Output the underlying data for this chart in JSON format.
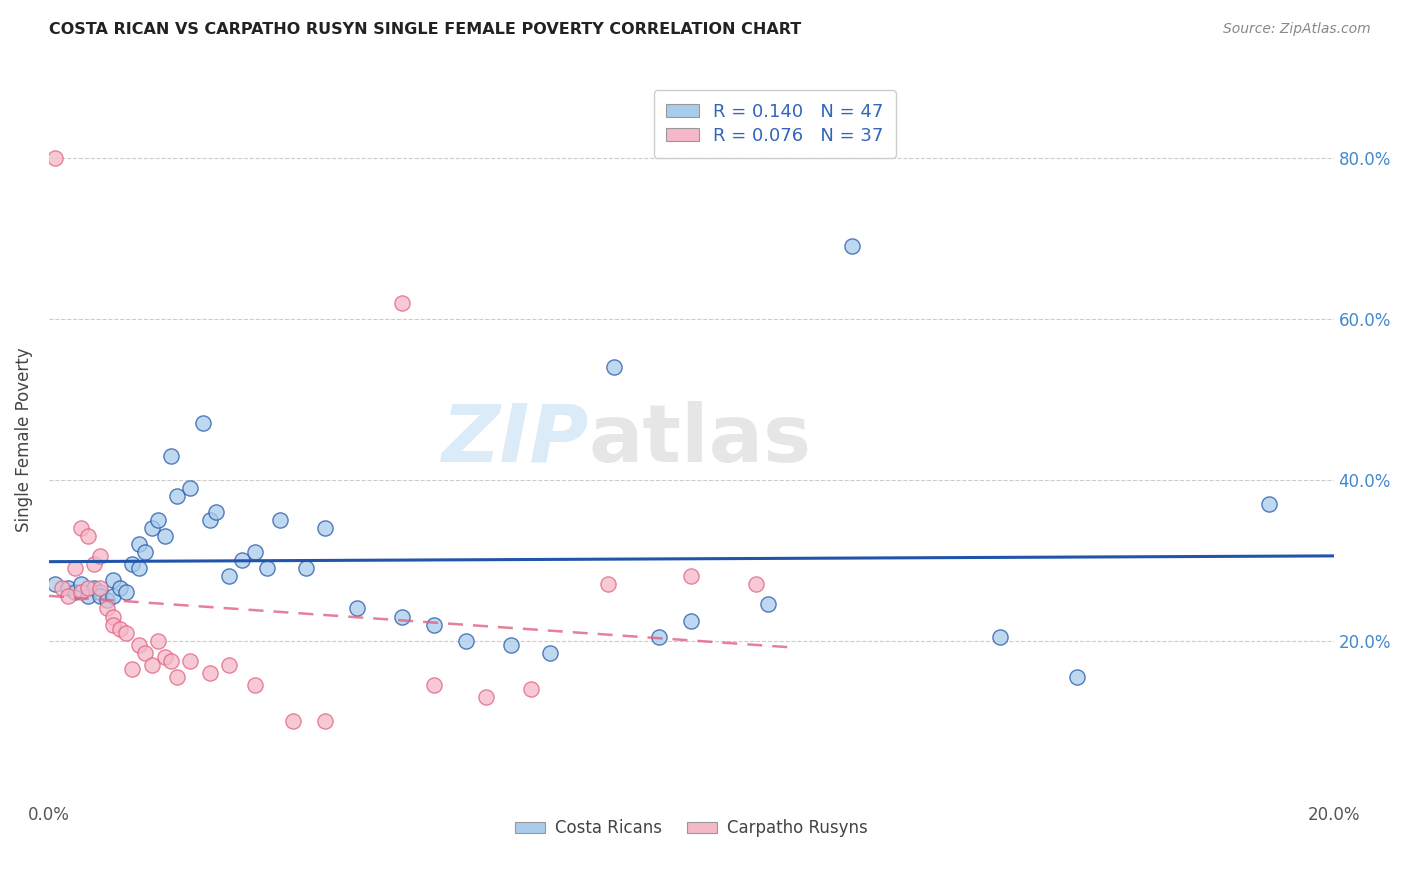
{
  "title": "COSTA RICAN VS CARPATHO RUSYN SINGLE FEMALE POVERTY CORRELATION CHART",
  "source": "Source: ZipAtlas.com",
  "ylabel": "Single Female Poverty",
  "xlim": [
    0.0,
    0.2
  ],
  "ylim": [
    0.0,
    0.9
  ],
  "xtick_vals": [
    0.0,
    0.04,
    0.08,
    0.12,
    0.16,
    0.2
  ],
  "ytick_vals": [
    0.0,
    0.2,
    0.4,
    0.6,
    0.8
  ],
  "ytick_labels_right": [
    "",
    "20.0%",
    "40.0%",
    "60.0%",
    "80.0%"
  ],
  "xtick_labels": [
    "0.0%",
    "",
    "",
    "",
    "",
    "20.0%"
  ],
  "blue_color": "#A8CCEA",
  "pink_color": "#F5B8C8",
  "blue_line_color": "#2255AA",
  "pink_line_color": "#E06080",
  "watermark_zip": "ZIP",
  "watermark_atlas": "atlas",
  "background_color": "#FFFFFF",
  "grid_color": "#CCCCCC",
  "blue_scatter_x": [
    0.001,
    0.003,
    0.004,
    0.005,
    0.006,
    0.007,
    0.008,
    0.008,
    0.009,
    0.01,
    0.01,
    0.011,
    0.012,
    0.013,
    0.014,
    0.014,
    0.015,
    0.016,
    0.017,
    0.018,
    0.019,
    0.02,
    0.022,
    0.024,
    0.025,
    0.026,
    0.028,
    0.03,
    0.032,
    0.034,
    0.036,
    0.04,
    0.043,
    0.048,
    0.055,
    0.06,
    0.065,
    0.072,
    0.078,
    0.088,
    0.095,
    0.1,
    0.112,
    0.125,
    0.148,
    0.16,
    0.19
  ],
  "blue_scatter_y": [
    0.27,
    0.265,
    0.26,
    0.27,
    0.255,
    0.265,
    0.26,
    0.255,
    0.25,
    0.255,
    0.275,
    0.265,
    0.26,
    0.295,
    0.32,
    0.29,
    0.31,
    0.34,
    0.35,
    0.33,
    0.43,
    0.38,
    0.39,
    0.47,
    0.35,
    0.36,
    0.28,
    0.3,
    0.31,
    0.29,
    0.35,
    0.29,
    0.34,
    0.24,
    0.23,
    0.22,
    0.2,
    0.195,
    0.185,
    0.54,
    0.205,
    0.225,
    0.245,
    0.69,
    0.205,
    0.155,
    0.37
  ],
  "pink_scatter_x": [
    0.001,
    0.002,
    0.003,
    0.004,
    0.005,
    0.005,
    0.006,
    0.006,
    0.007,
    0.008,
    0.008,
    0.009,
    0.01,
    0.01,
    0.011,
    0.012,
    0.013,
    0.014,
    0.015,
    0.016,
    0.017,
    0.018,
    0.019,
    0.02,
    0.022,
    0.025,
    0.028,
    0.032,
    0.038,
    0.043,
    0.055,
    0.06,
    0.068,
    0.075,
    0.087,
    0.1,
    0.11
  ],
  "pink_scatter_y": [
    0.8,
    0.265,
    0.255,
    0.29,
    0.34,
    0.26,
    0.33,
    0.265,
    0.295,
    0.265,
    0.305,
    0.24,
    0.23,
    0.22,
    0.215,
    0.21,
    0.165,
    0.195,
    0.185,
    0.17,
    0.2,
    0.18,
    0.175,
    0.155,
    0.175,
    0.16,
    0.17,
    0.145,
    0.1,
    0.1,
    0.62,
    0.145,
    0.13,
    0.14,
    0.27,
    0.28,
    0.27
  ]
}
